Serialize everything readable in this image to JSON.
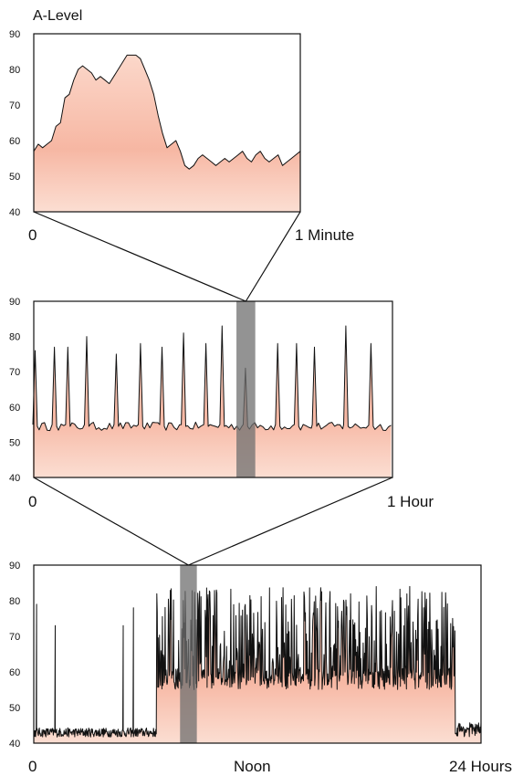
{
  "chart_data": [
    {
      "type": "area",
      "title": "A-Level",
      "x_start_label": "0",
      "x_end_label": "1 Minute",
      "ylim": [
        40,
        90
      ],
      "yticks": [
        40,
        50,
        60,
        70,
        80,
        90
      ],
      "x": [
        0,
        1,
        2,
        3,
        4,
        5,
        6,
        7,
        8,
        9,
        10,
        11,
        12,
        13,
        14,
        15,
        16,
        17,
        18,
        19,
        20,
        21,
        22,
        23,
        24,
        25,
        26,
        27,
        28,
        29,
        30,
        31,
        32,
        33,
        34,
        35,
        36,
        37,
        38,
        39,
        40,
        41,
        42,
        43,
        44,
        45,
        46,
        47,
        48,
        49,
        50,
        51,
        52,
        53,
        54,
        55,
        56,
        57,
        58,
        59,
        60
      ],
      "values": [
        57,
        59,
        58,
        59,
        60,
        64,
        65,
        72,
        73,
        77,
        80,
        81,
        80,
        79,
        77,
        78,
        77,
        76,
        78,
        80,
        82,
        84,
        84,
        84,
        83,
        80,
        77,
        73,
        67,
        62,
        58,
        59,
        60,
        57,
        53,
        52,
        53,
        55,
        56,
        55,
        54,
        53,
        54,
        55,
        54,
        55,
        56,
        57,
        55,
        54,
        56,
        57,
        55,
        54,
        55,
        56,
        53,
        54,
        55,
        56,
        57
      ],
      "fill_color": "#f6b9a6",
      "line_color": "#111111"
    },
    {
      "type": "area",
      "title": "",
      "x_start_label": "0",
      "x_end_label": "1 Hour",
      "ylim": [
        40,
        90
      ],
      "yticks": [
        40,
        50,
        60,
        70,
        80,
        90
      ],
      "baseline": 54.5,
      "spikes": [
        {
          "x": 0.3,
          "y": 76
        },
        {
          "x": 4.6,
          "y": 77
        },
        {
          "x": 7.6,
          "y": 77
        },
        {
          "x": 11.8,
          "y": 80
        },
        {
          "x": 18.4,
          "y": 75
        },
        {
          "x": 23.8,
          "y": 78
        },
        {
          "x": 28.6,
          "y": 77
        },
        {
          "x": 33.4,
          "y": 81
        },
        {
          "x": 38.4,
          "y": 78
        },
        {
          "x": 42.0,
          "y": 83
        },
        {
          "x": 47.2,
          "y": 71
        },
        {
          "x": 54.4,
          "y": 78
        },
        {
          "x": 58.6,
          "y": 78
        },
        {
          "x": 62.6,
          "y": 77
        },
        {
          "x": 69.6,
          "y": 83
        },
        {
          "x": 75.2,
          "y": 78
        }
      ],
      "x_range": [
        0,
        80
      ],
      "highlight": {
        "from": 45.2,
        "to": 49.4
      },
      "fill_color": "#f6b9a6",
      "line_color": "#111111"
    },
    {
      "type": "area",
      "title": "",
      "x_start_label": "0",
      "x_mid_label": "Noon",
      "x_end_label": "24 Hours",
      "ylim": [
        40,
        90
      ],
      "yticks": [
        40,
        50,
        60,
        70,
        80,
        90
      ],
      "x_range": [
        0,
        24
      ],
      "active_from": 6.6,
      "active_to": 22.6,
      "quiet_level": 43,
      "active_level": 55,
      "active_peak": 84,
      "isolated_spikes": [
        {
          "x": 0.15,
          "y": 79
        },
        {
          "x": 1.15,
          "y": 73
        },
        {
          "x": 4.8,
          "y": 73
        },
        {
          "x": 5.35,
          "y": 78
        }
      ],
      "highlight": {
        "from": 7.85,
        "to": 8.75
      },
      "fill_color": "#f6b9a6",
      "line_color": "#111111"
    }
  ],
  "connectors": {
    "color": "#111111"
  }
}
